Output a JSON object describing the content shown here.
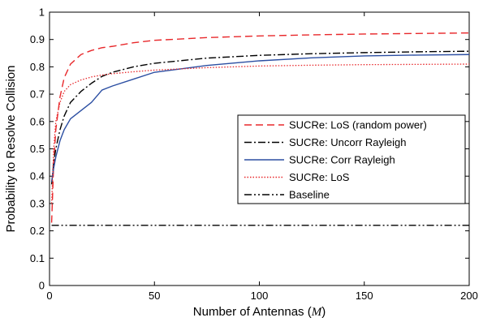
{
  "chart_data": {
    "type": "line",
    "xlabel_prefix": "Number of Antennas (",
    "xlabel_var": "M",
    "xlabel_suffix": ")",
    "ylabel": "Probability to Resolve Collision",
    "xlim": [
      0,
      200
    ],
    "ylim": [
      0,
      1
    ],
    "xticks": [
      0,
      50,
      100,
      150,
      200
    ],
    "yticks": [
      0,
      0.1,
      0.2,
      0.3,
      0.4,
      0.5,
      0.6,
      0.7,
      0.8,
      0.9,
      1
    ],
    "xtick_labels": [
      "0",
      "50",
      "100",
      "150",
      "200"
    ],
    "ytick_labels": [
      "0",
      "0.1",
      "0.2",
      "0.3",
      "0.4",
      "0.5",
      "0.6",
      "0.7",
      "0.8",
      "0.9",
      "1"
    ],
    "grid": false,
    "legend_position": "center-right",
    "series": [
      {
        "name": "SUCRe: LoS (random power)",
        "color": "#e8282b",
        "style": "dashed",
        "x": [
          1,
          2,
          3,
          5,
          7,
          10,
          15,
          20,
          25,
          30,
          40,
          50,
          75,
          100,
          125,
          150,
          175,
          200
        ],
        "y": [
          0.23,
          0.45,
          0.57,
          0.69,
          0.76,
          0.81,
          0.845,
          0.86,
          0.87,
          0.875,
          0.888,
          0.897,
          0.907,
          0.913,
          0.917,
          0.92,
          0.922,
          0.924
        ]
      },
      {
        "name": "SUCRe: Uncorr Rayleigh",
        "color": "#000000",
        "style": "dashdot",
        "x": [
          1,
          2,
          3,
          5,
          7,
          10,
          15,
          20,
          25,
          30,
          40,
          50,
          75,
          100,
          125,
          150,
          175,
          200
        ],
        "y": [
          0.37,
          0.45,
          0.5,
          0.57,
          0.62,
          0.67,
          0.71,
          0.74,
          0.765,
          0.78,
          0.8,
          0.813,
          0.832,
          0.842,
          0.848,
          0.852,
          0.855,
          0.857
        ]
      },
      {
        "name": "SUCRe: Corr Rayleigh",
        "color": "#2b4ea2",
        "style": "solid",
        "x": [
          1,
          2,
          3,
          5,
          7,
          10,
          15,
          20,
          25,
          30,
          40,
          50,
          75,
          100,
          125,
          150,
          175,
          200
        ],
        "y": [
          0.38,
          0.43,
          0.47,
          0.53,
          0.57,
          0.61,
          0.64,
          0.67,
          0.715,
          0.73,
          0.755,
          0.78,
          0.805,
          0.822,
          0.833,
          0.84,
          0.843,
          0.845
        ]
      },
      {
        "name": "SUCRe: LoS",
        "color": "#e8282b",
        "style": "dotted",
        "x": [
          1,
          2,
          3,
          5,
          7,
          10,
          15,
          20,
          25,
          30,
          40,
          50,
          75,
          100,
          125,
          150,
          175,
          200
        ],
        "y": [
          0.3,
          0.5,
          0.6,
          0.67,
          0.71,
          0.735,
          0.752,
          0.763,
          0.77,
          0.775,
          0.782,
          0.788,
          0.797,
          0.803,
          0.806,
          0.808,
          0.809,
          0.81
        ]
      },
      {
        "name": "Baseline",
        "color": "#000000",
        "style": "dashdotdot",
        "x": [
          1,
          200
        ],
        "y": [
          0.22,
          0.22
        ]
      }
    ]
  }
}
